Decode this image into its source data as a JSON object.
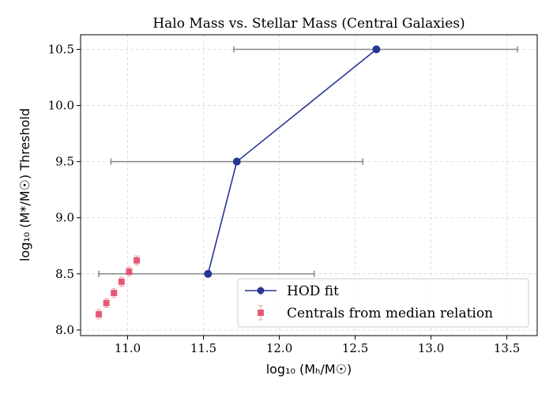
{
  "chart_data": {
    "type": "scatter",
    "title": "Halo Mass vs. Stellar Mass (Central Galaxies)",
    "xlabel": "log₁₀ (Mₕ/M☉)",
    "ylabel": "log₁₀ (M*/M☉) Threshold",
    "xlim": [
      10.69,
      13.7
    ],
    "ylim": [
      7.95,
      10.63
    ],
    "xticks": [
      11.0,
      11.5,
      12.0,
      12.5,
      13.0,
      13.5
    ],
    "xtick_labels": [
      "11.0",
      "11.5",
      "12.0",
      "12.5",
      "13.0",
      "13.5"
    ],
    "yticks": [
      8.0,
      8.5,
      9.0,
      9.5,
      10.0,
      10.5
    ],
    "ytick_labels": [
      "8.0",
      "8.5",
      "9.0",
      "9.5",
      "10.0",
      "10.5"
    ],
    "grid": true,
    "legend_position": "lower-right",
    "series": [
      {
        "name": "HOD fit",
        "kind": "line-errorbar",
        "color": "#283593",
        "errcolor": "#888888",
        "x": [
          11.53,
          11.72,
          12.64
        ],
        "y": [
          8.5,
          9.5,
          10.5
        ],
        "xerr_low": [
          10.81,
          10.89,
          11.7
        ],
        "xerr_high": [
          12.23,
          12.55,
          13.57
        ]
      },
      {
        "name": "Centrals from median relation",
        "kind": "scatter-errorbar",
        "color": "#e0405e",
        "x": [
          10.81,
          10.86,
          10.91,
          10.96,
          11.01,
          11.06
        ],
        "y": [
          8.14,
          8.24,
          8.33,
          8.43,
          8.52,
          8.62
        ],
        "yerr": [
          0.04,
          0.04,
          0.04,
          0.04,
          0.04,
          0.04
        ]
      }
    ]
  }
}
